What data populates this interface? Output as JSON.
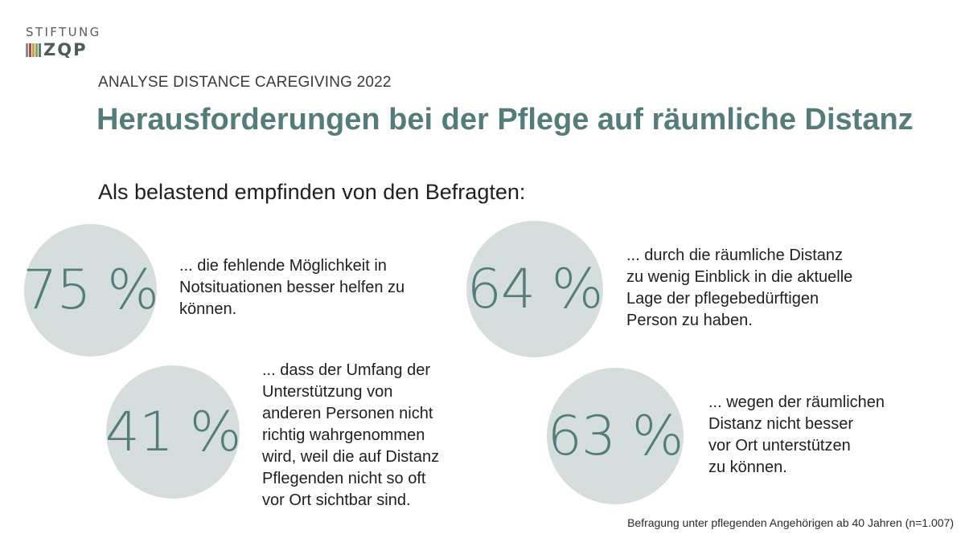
{
  "logo": {
    "top_text": "STIFTUNG",
    "word": "ZQP",
    "bar_colors": [
      "#8a8a8a",
      "#b5493d",
      "#c4a24a",
      "#8fa35a",
      "#557b7b"
    ]
  },
  "kicker": "ANALYSE DISTANCE CAREGIVING 2022",
  "title": "Herausforderungen bei der Pflege auf räumliche Distanz",
  "lead": "Als belastend empfinden von den Befragten:",
  "stats": [
    {
      "value": "75 %",
      "text_lines": [
        "... die fehlende Möglichkeit in",
        "Notsituationen besser helfen zu",
        "können."
      ]
    },
    {
      "value": "64 %",
      "text_lines": [
        "... durch die räumliche Distanz",
        "zu wenig Einblick in die aktuelle",
        "Lage der pflegebedürftigen",
        "Person zu haben."
      ]
    },
    {
      "value": "41 %",
      "text_lines": [
        "... dass der Umfang der",
        "Unterstützung von",
        "anderen Personen nicht",
        "richtig wahrgenommen",
        "wird, weil die auf Distanz",
        "Pflegenden nicht so oft",
        "vor Ort sichtbar sind."
      ]
    },
    {
      "value": "63 %",
      "text_lines": [
        "... wegen der räumlichen",
        "Distanz nicht besser",
        "vor Ort unterstützen",
        "zu können."
      ]
    }
  ],
  "footnote": "Befragung unter pflegenden Angehörigen ab 40 Jahren (n=1.007)",
  "colors": {
    "accent": "#557b7b",
    "circle": "#d5dedc",
    "text": "#1f1f1f"
  }
}
